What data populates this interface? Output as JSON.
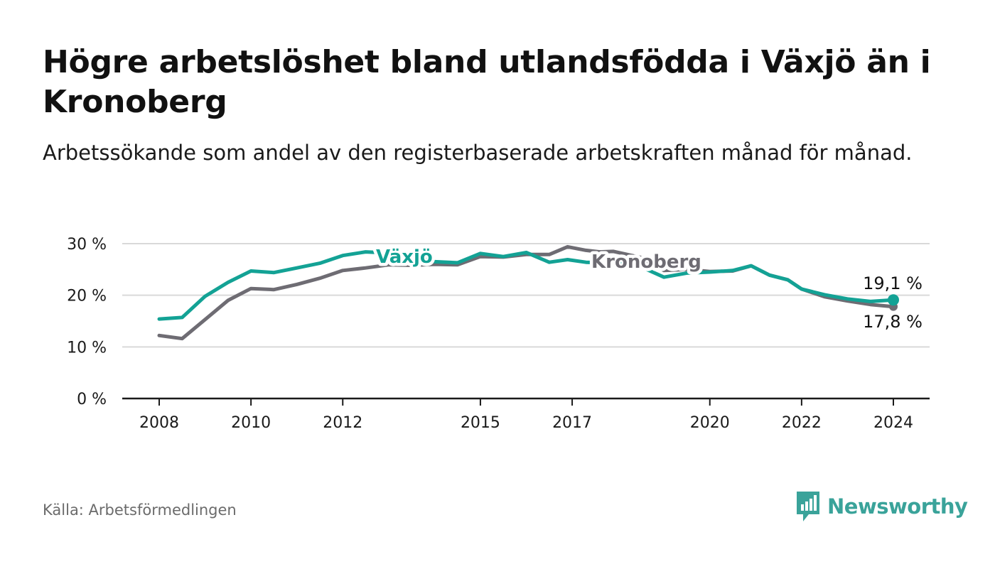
{
  "header": {
    "title": "Högre arbetslöshet bland utlandsfödda i Växjö än i Kronoberg",
    "subtitle": "Arbetssökande som andel av den registerbaserade arbetskraften månad för månad."
  },
  "footer": {
    "source": "Källa: Arbetsförmedlingen",
    "brand": "Newsworthy"
  },
  "colors": {
    "vaxjo": "#13a295",
    "kronoberg": "#6e6c73",
    "grid": "#d9d9d9",
    "axis": "#1a1a1a",
    "brand": "#3aa39a"
  },
  "chart_data": {
    "type": "line",
    "title": "Högre arbetslöshet bland utlandsfödda i Växjö än i Kronoberg",
    "xlabel": "",
    "ylabel": "",
    "xlim": [
      2008,
      2024
    ],
    "ylim": [
      0,
      30
    ],
    "y_ticks": [
      0,
      10,
      20,
      30
    ],
    "y_tick_labels": [
      "0 %",
      "10 %",
      "20 %",
      "30 %"
    ],
    "x_ticks": [
      2008,
      2010,
      2012,
      2015,
      2017,
      2020,
      2022,
      2024
    ],
    "x_tick_labels": [
      "2008",
      "2010",
      "2012",
      "2015",
      "2017",
      "2020",
      "2022",
      "2024"
    ],
    "grid": true,
    "series": [
      {
        "name": "Kronoberg",
        "label": "Kronoberg",
        "end_label": "17,8 %",
        "x": [
          2008.0,
          2008.5,
          2009.0,
          2009.5,
          2010.0,
          2010.5,
          2011.0,
          2011.5,
          2012.0,
          2012.5,
          2013.0,
          2013.5,
          2014.0,
          2014.5,
          2015.0,
          2015.5,
          2016.0,
          2016.5,
          2016.9,
          2017.3,
          2017.6,
          2017.9,
          2018.5,
          2019.0,
          2019.5,
          2020.0,
          2020.5,
          2020.9,
          2021.3,
          2021.7,
          2022.0,
          2022.5,
          2023.0,
          2023.5,
          2024.0
        ],
        "values": [
          12.2,
          11.6,
          15.3,
          19.0,
          21.3,
          21.1,
          22.1,
          23.3,
          24.8,
          25.3,
          25.9,
          25.8,
          26.0,
          25.9,
          27.5,
          27.4,
          27.9,
          27.9,
          29.4,
          28.7,
          28.4,
          28.5,
          27.3,
          24.8,
          25.0,
          24.6,
          24.7,
          25.7,
          23.9,
          23.0,
          21.2,
          19.7,
          18.9,
          18.2,
          17.8
        ]
      },
      {
        "name": "Växjö",
        "label": "Växjö",
        "end_label": "19,1 %",
        "x": [
          2008.0,
          2008.5,
          2009.0,
          2009.5,
          2010.0,
          2010.5,
          2011.0,
          2011.5,
          2012.0,
          2012.5,
          2013.0,
          2013.5,
          2014.0,
          2014.5,
          2015.0,
          2015.5,
          2016.0,
          2016.5,
          2016.9,
          2017.3,
          2017.6,
          2017.9,
          2018.5,
          2019.0,
          2019.5,
          2020.0,
          2020.5,
          2020.9,
          2021.3,
          2021.7,
          2022.0,
          2022.5,
          2023.0,
          2023.5,
          2024.0
        ],
        "values": [
          15.4,
          15.7,
          19.8,
          22.5,
          24.7,
          24.4,
          25.3,
          26.2,
          27.7,
          28.4,
          28.2,
          27.6,
          26.5,
          26.3,
          28.1,
          27.5,
          28.3,
          26.4,
          26.9,
          26.4,
          26.3,
          26.3,
          25.5,
          23.5,
          24.3,
          24.5,
          24.8,
          25.7,
          23.9,
          23.0,
          21.2,
          20.1,
          19.3,
          18.8,
          19.1
        ]
      }
    ]
  }
}
